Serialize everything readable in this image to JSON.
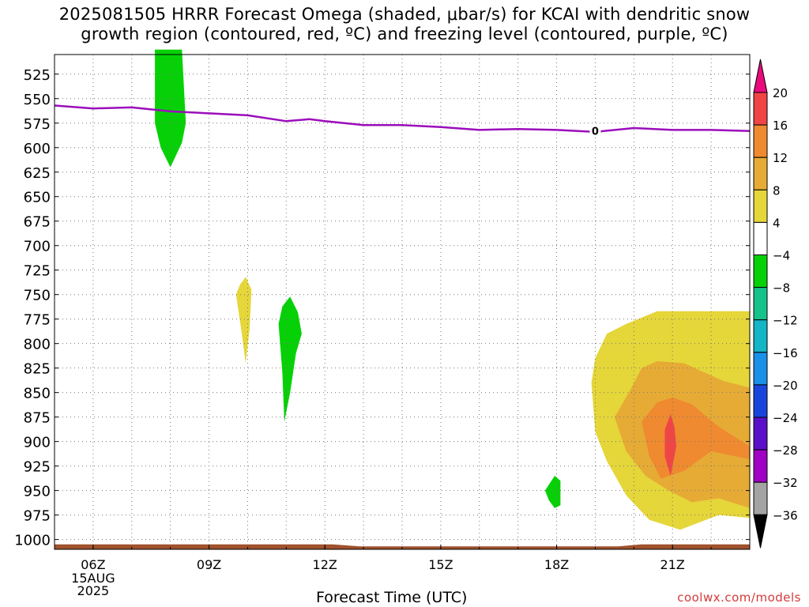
{
  "title_line1": "2025081505 HRRR Forecast Omega (shaded, μbar/s) for KCAI with dendritic snow",
  "title_line2": "growth region (contoured, red, ºC) and freezing level (contoured, purple, ºC)",
  "watermark": "coolwx.com/models",
  "chart_data": {
    "type": "heatmap",
    "title": "2025081505 HRRR Forecast Omega (shaded, μbar/s) for KCAI with dendritic snow growth region (contoured, red, ºC) and freezing level (contoured, purple, ºC)",
    "xlabel": "Forecast Time (UTC)",
    "ylabel": "",
    "x_ticks": [
      "06Z",
      "09Z",
      "12Z",
      "15Z",
      "18Z",
      "21Z"
    ],
    "x_tick_hours": [
      6,
      9,
      12,
      15,
      18,
      21
    ],
    "x_date_label": [
      "15AUG",
      "2025"
    ],
    "xlim": [
      5,
      23
    ],
    "ylim": [
      1010,
      505
    ],
    "y_ticks": [
      525,
      550,
      575,
      600,
      625,
      650,
      675,
      700,
      725,
      750,
      775,
      800,
      825,
      850,
      875,
      900,
      925,
      950,
      975,
      1000
    ],
    "grid": true,
    "colorbar_levels": [
      "20",
      "16",
      "12",
      "8",
      "4",
      "−4",
      "−8",
      "−12",
      "−16",
      "−20",
      "−24",
      "−28",
      "−32",
      "−36"
    ],
    "colorbar_colors": [
      "#f04545",
      "#ef8a30",
      "#e6ab35",
      "#e5d63a",
      "#ffffff",
      "#06d106",
      "#15c28a",
      "#14b5c5",
      "#1a90e8",
      "#1a45dd",
      "#5a10c8",
      "#9f00c3",
      "#a3a3a3"
    ],
    "colorbar_top_color": "#ea0a7c",
    "colorbar_bottom_color": "#000000",
    "freezing_level": {
      "label": "0",
      "color": "#9b0dbb",
      "points": [
        [
          5,
          557
        ],
        [
          6,
          560
        ],
        [
          7,
          559
        ],
        [
          8,
          563
        ],
        [
          9,
          565
        ],
        [
          10,
          567
        ],
        [
          11,
          573
        ],
        [
          11.6,
          571
        ],
        [
          12,
          573
        ],
        [
          13,
          577
        ],
        [
          14,
          577
        ],
        [
          15,
          579
        ],
        [
          16,
          582
        ],
        [
          17,
          581
        ],
        [
          18,
          582
        ],
        [
          19,
          584
        ],
        [
          20,
          580
        ],
        [
          21,
          582
        ],
        [
          22,
          582
        ],
        [
          23,
          583
        ]
      ]
    },
    "terrain_top_hPa": 1005,
    "terrain_color": "#a0522d",
    "shaded_regions": [
      {
        "value_range": "−4 to −8",
        "color": "#06d106",
        "hour_range": [
          7.6,
          8.4
        ],
        "pressure_range": [
          500,
          620
        ]
      },
      {
        "value_range": "4 to 8",
        "color": "#e5d63a",
        "hour_range": [
          9.7,
          10.1
        ],
        "pressure_range": [
          732,
          820
        ]
      },
      {
        "value_range": "−4 to −8",
        "color": "#06d106",
        "hour_range": [
          10.8,
          11.4
        ],
        "pressure_range": [
          752,
          880
        ]
      },
      {
        "value_range": "−4 to −8",
        "color": "#06d106",
        "hour_range": [
          17.7,
          18.1
        ],
        "pressure_range": [
          933,
          968
        ]
      },
      {
        "value_range": "4 to 8",
        "color": "#e5d63a",
        "hour_range": [
          18.9,
          23
        ],
        "pressure_range": [
          767,
          990
        ]
      },
      {
        "value_range": "8 to 12",
        "color": "#e6ab35",
        "hour_range": [
          19.5,
          23
        ],
        "pressure_range": [
          818,
          968
        ]
      },
      {
        "value_range": "12 to 16",
        "color": "#ef8a30",
        "hour_range": [
          20.2,
          23
        ],
        "pressure_range": [
          855,
          938
        ]
      },
      {
        "value_range": "16 to 20",
        "color": "#f04545",
        "hour_range": [
          20.8,
          21.1
        ],
        "pressure_range": [
          872,
          935
        ]
      }
    ]
  }
}
